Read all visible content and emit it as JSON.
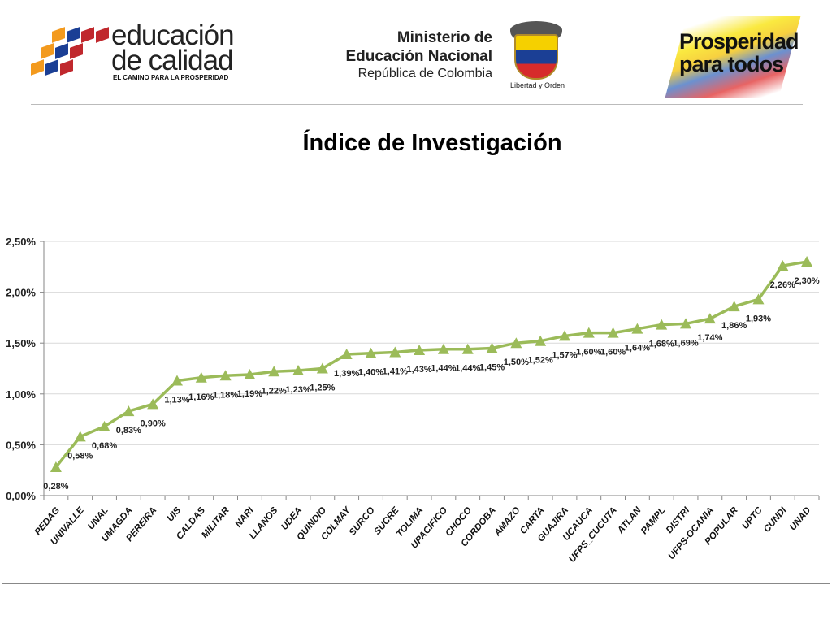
{
  "header": {
    "logo_left": {
      "line1": "educación",
      "line2": "de calidad",
      "tagline": "EL CAMINO PARA LA PROSPERIDAD"
    },
    "ministry": {
      "line1": "Ministerio de",
      "line2": "Educación Nacional",
      "line3": "República de Colombia",
      "motto": "Libertad y Orden"
    },
    "logo_right": {
      "line1": "Prosperidad",
      "line2": "para todos"
    }
  },
  "colors": {
    "series": "#9BBB59",
    "grid": "#D9D9D9",
    "axis": "#868686"
  },
  "chart_data": {
    "type": "line",
    "title": "Índice de Investigación",
    "xlabel": "",
    "ylabel": "",
    "ylim": [
      0,
      0.025
    ],
    "yticks": [
      "0,00%",
      "0,50%",
      "1,00%",
      "1,50%",
      "2,00%",
      "2,50%"
    ],
    "grid": true,
    "legend": "none",
    "marker": "triangle",
    "categories": [
      "PEDAG",
      "UNIVALLE",
      "UNAL",
      "UMAGDA",
      "PEREIRA",
      "UIS",
      "CALDAS",
      "MILITAR",
      "NARI",
      "LLANOS",
      "UDEA",
      "QUINDIO",
      "COLMAY",
      "SURCO",
      "SUCRE",
      "TOLIMA",
      "UPACIFICO",
      "CHOCO",
      "CORDOBA",
      "AMAZO",
      "CARTA",
      "GUAJIRA",
      "UCAUCA",
      "UFPS_CUCUTA",
      "ATLAN",
      "PAMPL",
      "DISTRI",
      "UFPS-OCANIA",
      "POPULAR",
      "UPTC",
      "CUNDI",
      "UNAD"
    ],
    "values": [
      0.0028,
      0.0058,
      0.0068,
      0.0083,
      0.009,
      0.0113,
      0.0116,
      0.0118,
      0.0119,
      0.0122,
      0.0123,
      0.0125,
      0.0139,
      0.014,
      0.0141,
      0.0143,
      0.0144,
      0.0144,
      0.0145,
      0.015,
      0.0152,
      0.0157,
      0.016,
      0.016,
      0.0164,
      0.0168,
      0.0169,
      0.0174,
      0.0186,
      0.0193,
      0.0226,
      0.023
    ],
    "data_labels": [
      "0,28%",
      "0,58%",
      "0,68%",
      "0,83%",
      "0,90%",
      "1,13%",
      "1,16%",
      "1,18%",
      "1,19%",
      "1,22%",
      "1,23%",
      "1,25%",
      "1,39%",
      "1,40%",
      "1,41%",
      "1,43%",
      "1,44%",
      "1,44%",
      "1,45%",
      "1,50%",
      "1,52%",
      "1,57%",
      "1,60%",
      "1,60%",
      "1,64%",
      "1,68%",
      "1,69%",
      "1,74%",
      "1,86%",
      "1,93%",
      "2,26%",
      "2,30%"
    ]
  }
}
